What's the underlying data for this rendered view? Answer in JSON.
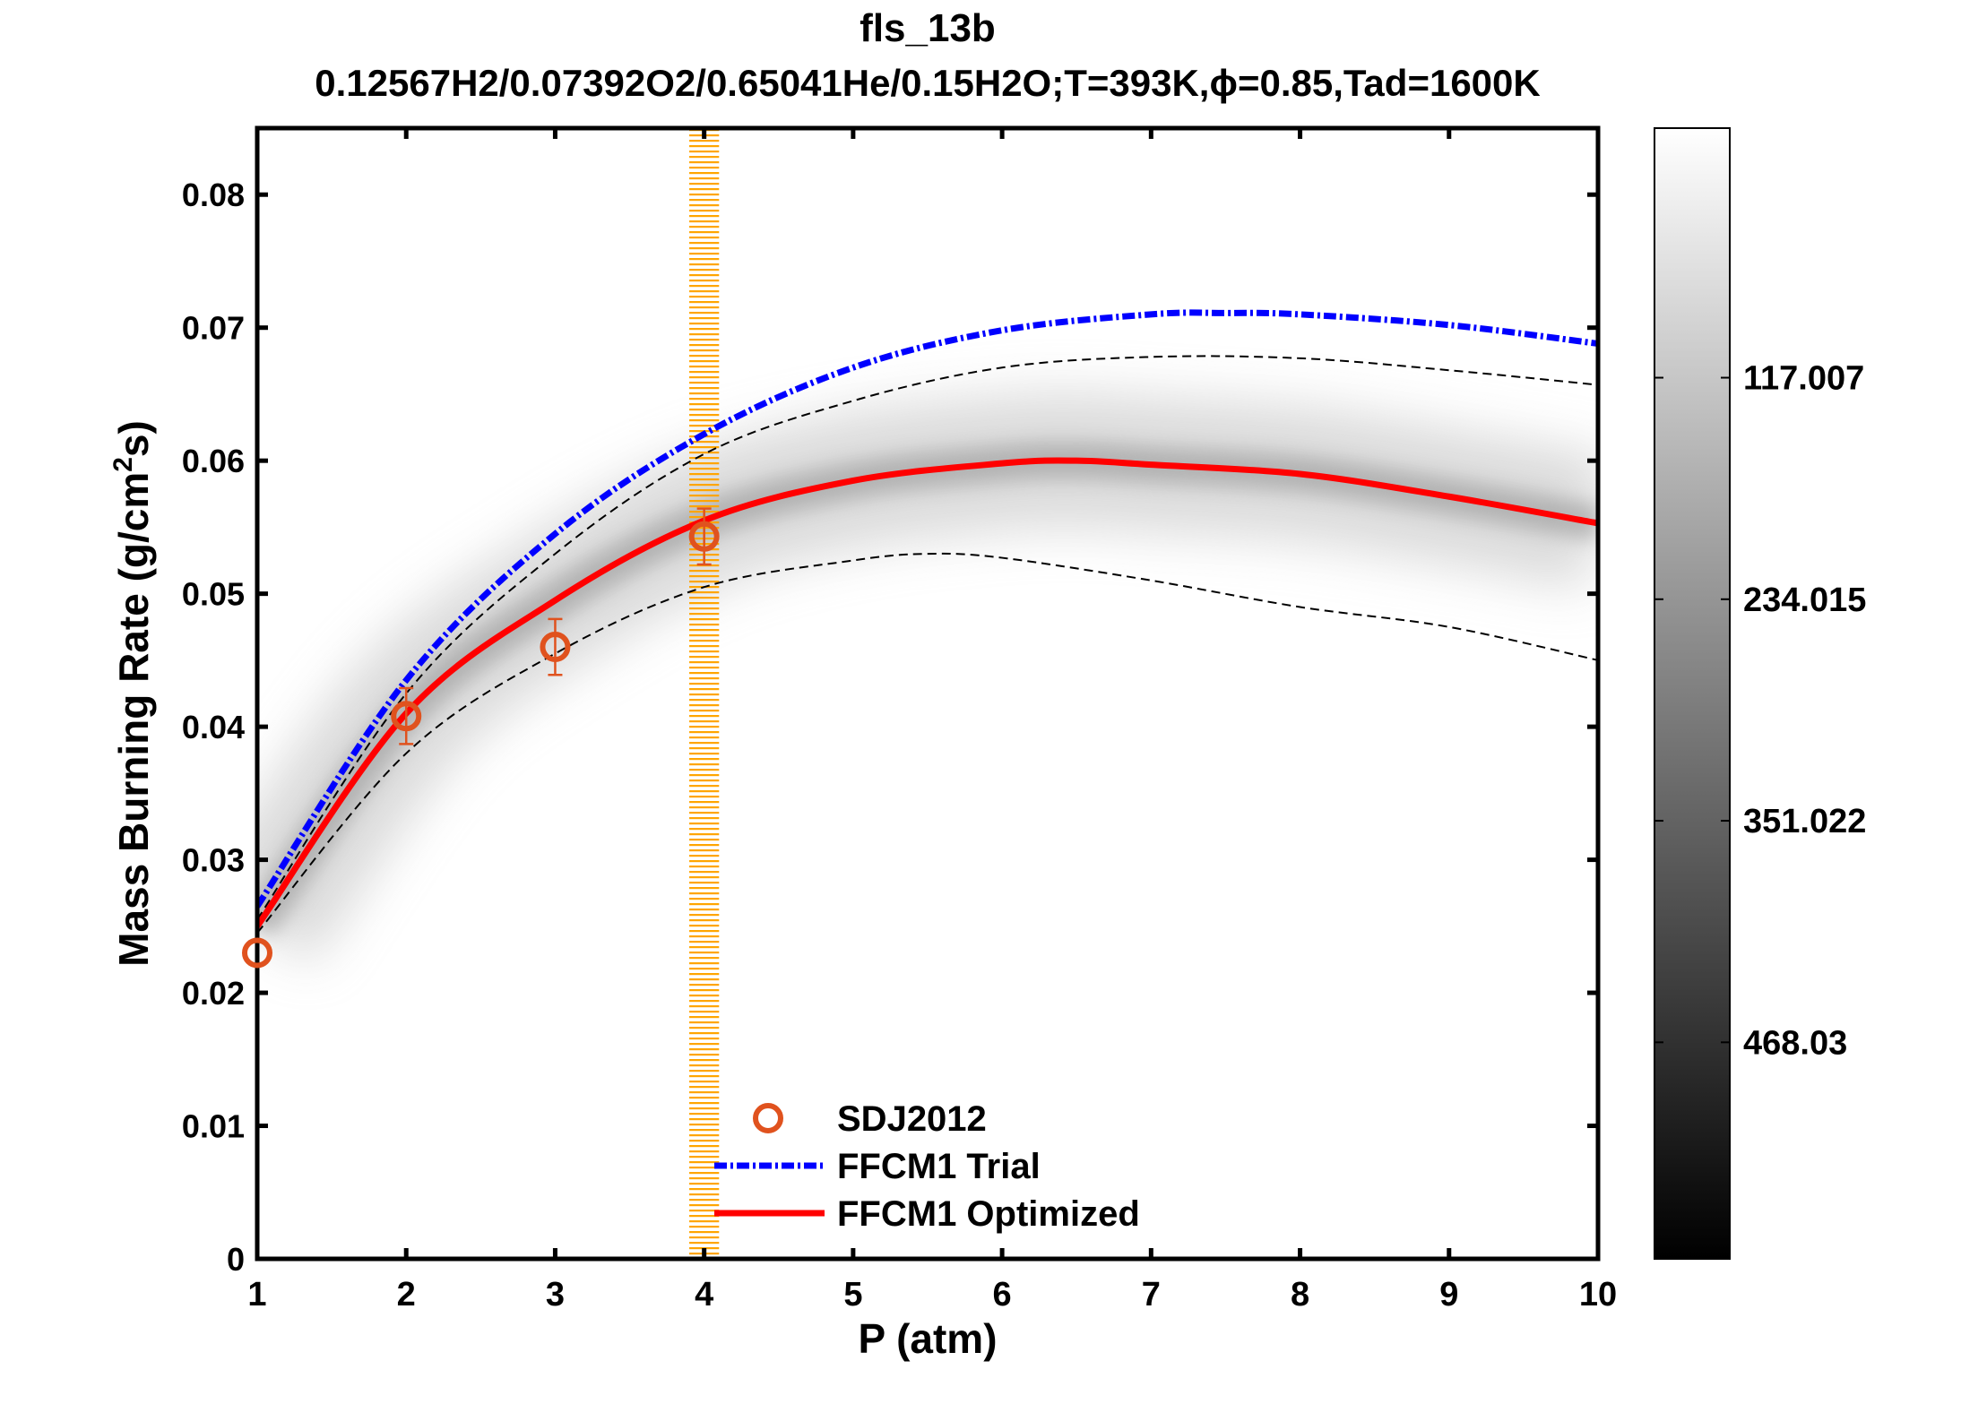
{
  "chart_data": {
    "type": "line",
    "title": "fls_13b",
    "subtitle": "0.12567H2/0.07392O2/0.65041He/0.15H2O;T=393K,ϕ=0.85,Tad=1600K",
    "xlabel": "P (atm)",
    "ylabel": "Mass Burning Rate (g/cm²s)",
    "ylabel_parts": {
      "main": "Mass Burning Rate (g/cm",
      "sup": "2",
      "end": "s)"
    },
    "xlim": [
      1,
      10
    ],
    "ylim": [
      0,
      0.085
    ],
    "xticks": [
      1,
      2,
      3,
      4,
      5,
      6,
      7,
      8,
      9,
      10
    ],
    "xtick_labels": [
      "1",
      "2",
      "3",
      "4",
      "5",
      "6",
      "7",
      "8",
      "9",
      "10"
    ],
    "yticks": [
      0,
      0.01,
      0.02,
      0.03,
      0.04,
      0.05,
      0.06,
      0.07,
      0.08
    ],
    "ytick_labels": [
      "0",
      "0.01",
      "0.02",
      "0.03",
      "0.04",
      "0.05",
      "0.06",
      "0.07",
      "0.08"
    ],
    "grid": false,
    "legend_placement": "bottom-center",
    "highlight_band": {
      "x_range": [
        3.9,
        4.1
      ],
      "color": "#ffa500"
    },
    "series": [
      {
        "name": "SDJ2012",
        "kind": "scatter-errorbar",
        "color": "#e0521e",
        "x": [
          1,
          2,
          3,
          4
        ],
        "y": [
          0.023,
          0.0408,
          0.046,
          0.0543
        ],
        "err": [
          0.0,
          0.0021,
          0.0021,
          0.0021
        ]
      },
      {
        "name": "FFCM1 Trial",
        "kind": "dash-dot",
        "color": "#0000ff",
        "x": [
          1,
          2,
          3,
          4,
          5,
          6,
          7,
          7.5,
          8,
          9,
          10
        ],
        "y": [
          0.0265,
          0.0435,
          0.0545,
          0.062,
          0.067,
          0.0698,
          0.071,
          0.0711,
          0.071,
          0.0702,
          0.0688
        ]
      },
      {
        "name": "FFCM1 Optimized",
        "kind": "solid",
        "color": "#ff0000",
        "x": [
          1,
          2,
          3,
          4,
          5,
          6,
          6.5,
          7,
          8,
          9,
          10
        ],
        "y": [
          0.025,
          0.041,
          0.0495,
          0.0555,
          0.0585,
          0.0598,
          0.06,
          0.0597,
          0.059,
          0.0573,
          0.0553
        ]
      },
      {
        "kind": "dashed-bound-upper",
        "color": "#000000",
        "x": [
          1,
          2,
          3,
          4,
          5,
          6,
          7,
          8,
          9,
          10
        ],
        "y": [
          0.0255,
          0.0425,
          0.053,
          0.0605,
          0.0645,
          0.067,
          0.0678,
          0.0677,
          0.0668,
          0.0657
        ]
      },
      {
        "kind": "dashed-bound-lower",
        "color": "#000000",
        "x": [
          1,
          2,
          3,
          4,
          5,
          5.5,
          6,
          7,
          8,
          9,
          10
        ],
        "y": [
          0.0245,
          0.038,
          0.0455,
          0.0505,
          0.0525,
          0.053,
          0.0527,
          0.051,
          0.049,
          0.0475,
          0.045
        ]
      }
    ],
    "colorbar": {
      "colormap": "gray (white high, black low)",
      "ticks": [
        117.007,
        234.015,
        351.022,
        468.03
      ],
      "tick_labels": [
        "117.007",
        "234.015",
        "351.022",
        "468.03"
      ],
      "range": [
        -14.8,
        582.4
      ]
    }
  }
}
